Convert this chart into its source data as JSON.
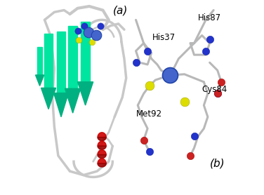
{
  "background_color": "#ffffff",
  "panel_a_label": "(a)",
  "panel_b_label": "(b)",
  "residue_labels": [
    "His37",
    "His87",
    "Met92",
    "Cys84"
  ],
  "beta_sheet_color": "#00e5a0",
  "beta_sheet_dark": "#00b080",
  "helix_color": "#cc0000",
  "ribbon_color": "#c8c8c8",
  "copper_color": "#4466cc",
  "nitrogen_color": "#2233cc",
  "sulfur_color": "#dddd00",
  "oxygen_color": "#cc2222",
  "carbon_color": "#c0c0c0",
  "label_fontsize": 8.5,
  "panel_label_fontsize": 11
}
